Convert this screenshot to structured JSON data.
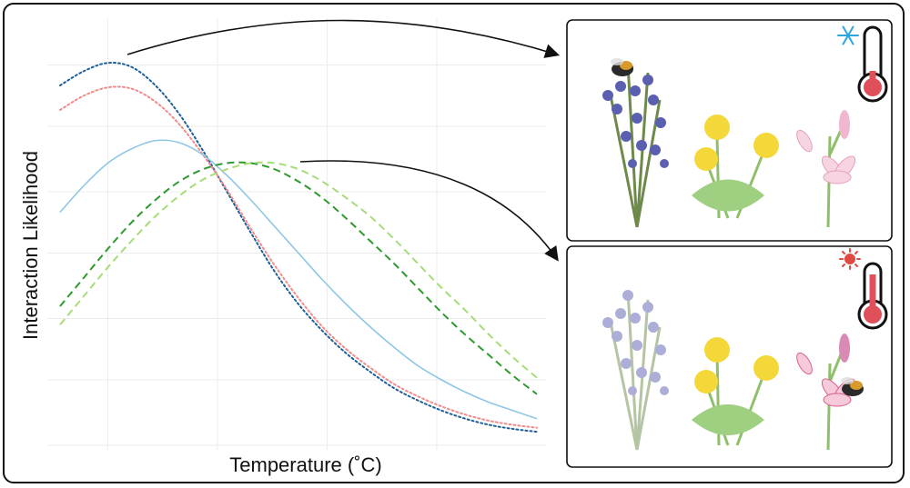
{
  "chart_data": {
    "type": "line",
    "xlabel": "Temperature (˚C)",
    "ylabel": "Interaction Likelihood",
    "x_ticks_labeled": false,
    "y_ticks_labeled": false,
    "grid": true,
    "legend": "none",
    "x": [
      0,
      1,
      2,
      3,
      4,
      5,
      6,
      7,
      8,
      9,
      10,
      11,
      12,
      13,
      14,
      15,
      16,
      17,
      18,
      19,
      20
    ],
    "series": [
      {
        "color": "#1f5f99",
        "dash": "dotted",
        "values": [
          0.88,
          0.915,
          0.935,
          0.925,
          0.88,
          0.81,
          0.72,
          0.62,
          0.52,
          0.425,
          0.345,
          0.28,
          0.225,
          0.18,
          0.14,
          0.11,
          0.085,
          0.065,
          0.05,
          0.04,
          0.033
        ]
      },
      {
        "color": "#f08b8b",
        "dash": "dotted",
        "values": [
          0.82,
          0.855,
          0.875,
          0.872,
          0.84,
          0.785,
          0.71,
          0.625,
          0.53,
          0.44,
          0.36,
          0.29,
          0.235,
          0.19,
          0.15,
          0.12,
          0.095,
          0.075,
          0.06,
          0.05,
          0.043
        ]
      },
      {
        "color": "#8ec6e6",
        "dash": "solid",
        "values": [
          0.57,
          0.635,
          0.69,
          0.725,
          0.745,
          0.74,
          0.71,
          0.66,
          0.6,
          0.535,
          0.47,
          0.405,
          0.345,
          0.29,
          0.24,
          0.195,
          0.16,
          0.13,
          0.105,
          0.085,
          0.065
        ]
      },
      {
        "color": "#2e9a2e",
        "dash": "dashed",
        "values": [
          0.34,
          0.41,
          0.48,
          0.545,
          0.6,
          0.645,
          0.675,
          0.69,
          0.69,
          0.675,
          0.645,
          0.605,
          0.555,
          0.5,
          0.445,
          0.385,
          0.325,
          0.27,
          0.22,
          0.17,
          0.125
        ]
      },
      {
        "color": "#a7dc7a",
        "dash": "dashed",
        "values": [
          0.295,
          0.365,
          0.435,
          0.5,
          0.56,
          0.61,
          0.65,
          0.675,
          0.69,
          0.69,
          0.675,
          0.645,
          0.605,
          0.56,
          0.505,
          0.445,
          0.385,
          0.33,
          0.27,
          0.215,
          0.165
        ]
      }
    ]
  },
  "panels": [
    {
      "condition": "cold",
      "thermometer_level": 0.2,
      "icon": "snowflake-icon",
      "bee_on": "blue-flower"
    },
    {
      "condition": "warm",
      "thermometer_level": 0.75,
      "icon": "sun-icon",
      "bee_on": "lily"
    }
  ],
  "colors": {
    "snow": "#2aa7e0",
    "sun": "#e04a42",
    "thermo": "#e0505a",
    "flower_blue": "#5b5fb0",
    "dandelion": "#f4d83a",
    "lily": "#f0b8d0"
  }
}
